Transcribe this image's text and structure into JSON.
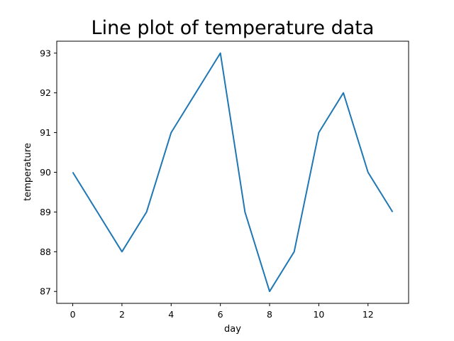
{
  "chart_data": {
    "type": "line",
    "title": "Line plot of temperature data",
    "xlabel": "day",
    "ylabel": "temperature",
    "x": [
      0,
      1,
      2,
      3,
      4,
      5,
      6,
      7,
      8,
      9,
      10,
      11,
      12,
      13
    ],
    "series": [
      {
        "values": [
          90,
          89,
          88,
          89,
          91,
          92,
          93,
          89,
          87,
          88,
          91,
          92,
          90,
          89
        ],
        "color": "#1f77b4"
      }
    ],
    "xlim": [
      -0.65,
      13.65
    ],
    "ylim": [
      86.7,
      93.3
    ],
    "xticks": [
      0,
      2,
      4,
      6,
      8,
      10,
      12
    ],
    "yticks": [
      87,
      88,
      89,
      90,
      91,
      92,
      93
    ],
    "grid": false,
    "legend": "none"
  }
}
